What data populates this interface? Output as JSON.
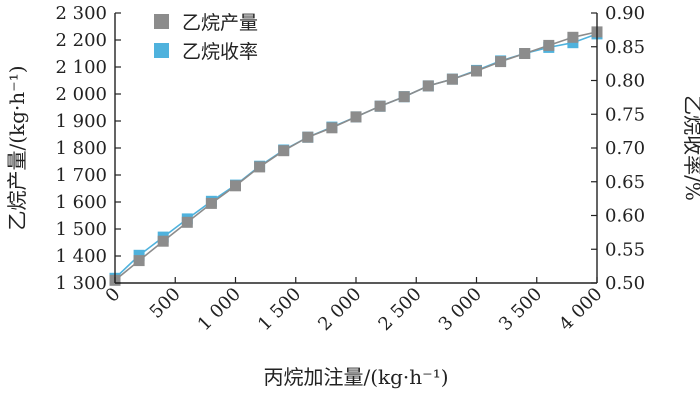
{
  "chart_data": {
    "type": "line",
    "xlabel": "丙烷加注量/(kg·h⁻¹)",
    "ylabel_left": "乙烷产量/(kg·h⁻¹)",
    "ylabel_right": "乙烷收率/%",
    "xlim": [
      0,
      4000
    ],
    "ylim_left": [
      1300,
      2300
    ],
    "ylim_right": [
      0.5,
      0.9
    ],
    "x_ticks": [
      0,
      500,
      1000,
      1500,
      2000,
      2500,
      3000,
      3500,
      4000
    ],
    "x_tick_labels": [
      "0",
      "500",
      "1 000",
      "1 500",
      "2 000",
      "2 500",
      "3 000",
      "3 500",
      "4 000"
    ],
    "y_left_ticks": [
      1300,
      1400,
      1500,
      1600,
      1700,
      1800,
      1900,
      2000,
      2100,
      2200,
      2300
    ],
    "y_left_tick_labels": [
      "1 300",
      "1 400",
      "1 500",
      "1 600",
      "1 700",
      "1 800",
      "1 900",
      "2 000",
      "2 100",
      "2 200",
      "2 300"
    ],
    "y_right_ticks": [
      0.5,
      0.55,
      0.6,
      0.65,
      0.7,
      0.75,
      0.8,
      0.85,
      0.9
    ],
    "y_right_tick_labels": [
      "0.50",
      "0.55",
      "0.60",
      "0.65",
      "0.70",
      "0.75",
      "0.80",
      "0.85",
      "0.90"
    ],
    "grid": false,
    "legend_position": "top-left",
    "x": [
      0,
      200,
      400,
      600,
      800,
      1000,
      1200,
      1400,
      1600,
      1800,
      2000,
      2200,
      2400,
      2600,
      2800,
      3000,
      3200,
      3400,
      3600,
      3800,
      4000
    ],
    "series": [
      {
        "name": "乙烷产量",
        "axis": "left",
        "color": "#8c8c8c",
        "marker": "square",
        "values": [
          1310,
          1383,
          1455,
          1525,
          1595,
          1660,
          1730,
          1790,
          1840,
          1875,
          1915,
          1955,
          1990,
          2030,
          2055,
          2085,
          2120,
          2150,
          2180,
          2210,
          2230
        ]
      },
      {
        "name": "乙烷收率",
        "axis": "right",
        "color": "#4fb2dd",
        "marker": "square",
        "values": [
          0.507,
          0.541,
          0.568,
          0.595,
          0.621,
          0.645,
          0.673,
          0.697,
          0.716,
          0.731,
          0.746,
          0.762,
          0.776,
          0.792,
          0.802,
          0.815,
          0.829,
          0.84,
          0.849,
          0.856,
          0.869
        ]
      }
    ]
  }
}
